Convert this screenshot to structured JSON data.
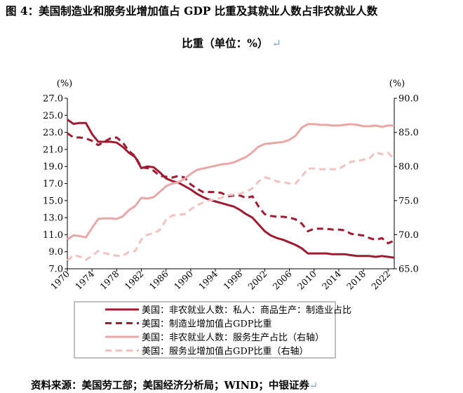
{
  "title_line1": "图 4：美国制造业和服务业增加值占 GDP 比重及其就业人数占非农就业人数",
  "title_line2": "比重（单位：%）",
  "source": "资料来源：美国劳工部；美国经济分析局；WIND；中银证券",
  "chart_data": {
    "type": "line",
    "left_axis": {
      "unit": "(%)",
      "ylim": [
        7,
        27
      ],
      "ticks": [
        "7.0",
        "9.0",
        "11.0",
        "13.0",
        "15.0",
        "17.0",
        "19.0",
        "21.0",
        "23.0",
        "25.0",
        "27.0"
      ]
    },
    "right_axis": {
      "unit": "(%)",
      "ylim": [
        65,
        90
      ],
      "ticks": [
        "65.0",
        "70.0",
        "75.0",
        "80.0",
        "85.0",
        "90.0"
      ]
    },
    "x_ticks": [
      "1970",
      "1974",
      "1978",
      "1982",
      "1986",
      "1990",
      "1994",
      "1998",
      "2002",
      "2006",
      "2010",
      "2014",
      "2018",
      "2022"
    ],
    "x_range": [
      1970,
      2023
    ],
    "series": [
      {
        "name": "美国：非农就业人数：私人：商品生产：制造业占比",
        "axis": "left",
        "color": "#9e1b32",
        "dash": "solid",
        "x": [
          1970,
          1971,
          1972,
          1973,
          1974,
          1975,
          1976,
          1977,
          1978,
          1979,
          1980,
          1981,
          1982,
          1983,
          1984,
          1985,
          1986,
          1987,
          1988,
          1989,
          1990,
          1991,
          1992,
          1993,
          1994,
          1995,
          1996,
          1997,
          1998,
          1999,
          2000,
          2001,
          2002,
          2003,
          2004,
          2005,
          2006,
          2007,
          2008,
          2009,
          2010,
          2011,
          2012,
          2013,
          2014,
          2015,
          2016,
          2017,
          2018,
          2019,
          2020,
          2021,
          2022,
          2023
        ],
        "values": [
          24.5,
          24.0,
          24.1,
          24.1,
          22.8,
          21.9,
          21.9,
          21.9,
          21.8,
          21.3,
          20.6,
          20.1,
          18.8,
          19.0,
          18.9,
          18.3,
          17.6,
          17.3,
          17.1,
          16.7,
          16.3,
          15.8,
          15.4,
          15.1,
          14.9,
          14.7,
          14.5,
          14.3,
          13.9,
          13.4,
          13.0,
          12.2,
          11.4,
          10.9,
          10.6,
          10.4,
          10.1,
          9.8,
          9.4,
          8.8,
          8.8,
          8.8,
          8.8,
          8.7,
          8.7,
          8.7,
          8.6,
          8.5,
          8.5,
          8.5,
          8.4,
          8.5,
          8.4,
          8.3
        ]
      },
      {
        "name": "美国：制造业增加值占GDP比重",
        "axis": "left",
        "color": "#9e1b32",
        "dash": "dashed",
        "x": [
          1970,
          1971,
          1972,
          1973,
          1974,
          1975,
          1976,
          1977,
          1978,
          1979,
          1980,
          1981,
          1982,
          1983,
          1984,
          1985,
          1986,
          1987,
          1988,
          1989,
          1990,
          1991,
          1992,
          1993,
          1994,
          1995,
          1996,
          1997,
          1998,
          1999,
          2000,
          2001,
          2002,
          2003,
          2004,
          2005,
          2006,
          2007,
          2008,
          2009,
          2010,
          2011,
          2012,
          2013,
          2014,
          2015,
          2016,
          2017,
          2018,
          2019,
          2020,
          2021,
          2022,
          2023
        ],
        "values": [
          22.9,
          22.4,
          22.4,
          22.3,
          22.0,
          21.5,
          21.9,
          22.3,
          22.4,
          21.8,
          20.8,
          20.2,
          18.9,
          18.8,
          18.5,
          17.9,
          17.8,
          17.7,
          17.9,
          17.7,
          16.9,
          16.4,
          16.0,
          16.0,
          16.0,
          15.9,
          15.5,
          15.6,
          15.6,
          15.3,
          15.5,
          14.3,
          13.4,
          13.2,
          13.1,
          13.1,
          13.0,
          12.8,
          12.3,
          11.4,
          11.7,
          11.7,
          11.7,
          11.6,
          11.6,
          11.5,
          11.1,
          11.0,
          10.9,
          10.6,
          10.4,
          10.6,
          10.0,
          10.3
        ]
      },
      {
        "name": "美国：非农就业人数：服务生产占比（右轴）",
        "axis": "right",
        "color": "#e8a8a8",
        "dash": "solid",
        "x": [
          1970,
          1971,
          1972,
          1973,
          1974,
          1975,
          1976,
          1977,
          1978,
          1979,
          1980,
          1981,
          1982,
          1983,
          1984,
          1985,
          1986,
          1987,
          1988,
          1989,
          1990,
          1991,
          1992,
          1993,
          1994,
          1995,
          1996,
          1997,
          1998,
          1999,
          2000,
          2001,
          2002,
          2003,
          2004,
          2005,
          2006,
          2007,
          2008,
          2009,
          2010,
          2011,
          2012,
          2013,
          2014,
          2015,
          2016,
          2017,
          2018,
          2019,
          2020,
          2021,
          2022,
          2023
        ],
        "values": [
          69.3,
          69.9,
          69.8,
          69.6,
          71.0,
          72.3,
          72.4,
          72.4,
          72.3,
          72.7,
          73.6,
          74.2,
          75.4,
          75.3,
          75.5,
          76.3,
          77.1,
          77.5,
          77.7,
          78.2,
          78.9,
          79.5,
          79.7,
          79.9,
          80.1,
          80.3,
          80.4,
          80.6,
          81.0,
          81.4,
          82.1,
          82.9,
          83.3,
          83.4,
          83.5,
          83.6,
          83.9,
          84.5,
          85.7,
          86.2,
          86.2,
          86.1,
          86.1,
          86.0,
          86.0,
          86.1,
          86.2,
          86.1,
          85.9,
          85.9,
          86.0,
          85.8,
          86.0,
          86.0
        ]
      },
      {
        "name": "美国：服务业增加值占GDP比重（右轴）",
        "axis": "right",
        "color": "#f0c2c2",
        "dash": "dashed",
        "x": [
          1970,
          1971,
          1972,
          1973,
          1974,
          1975,
          1976,
          1977,
          1978,
          1979,
          1980,
          1981,
          1982,
          1983,
          1984,
          1985,
          1986,
          1987,
          1988,
          1989,
          1990,
          1991,
          1992,
          1993,
          1994,
          1995,
          1996,
          1997,
          1998,
          1999,
          2000,
          2001,
          2002,
          2003,
          2004,
          2005,
          2006,
          2007,
          2008,
          2009,
          2010,
          2011,
          2012,
          2013,
          2014,
          2015,
          2016,
          2017,
          2018,
          2019,
          2020,
          2021,
          2022,
          2023
        ],
        "values": [
          66.2,
          67.0,
          66.8,
          66.3,
          66.9,
          67.6,
          67.3,
          67.1,
          66.9,
          66.9,
          67.5,
          67.6,
          69.3,
          70.0,
          70.2,
          70.7,
          72.2,
          72.8,
          72.9,
          73.0,
          73.7,
          74.3,
          74.7,
          75.0,
          75.2,
          75.4,
          75.8,
          75.9,
          76.0,
          76.3,
          76.8,
          77.8,
          78.4,
          78.2,
          77.8,
          77.7,
          77.5,
          77.5,
          78.5,
          79.7,
          79.7,
          79.6,
          79.6,
          79.6,
          79.6,
          80.2,
          80.7,
          80.8,
          81.0,
          81.2,
          82.1,
          81.8,
          82.0,
          81.1
        ]
      }
    ]
  }
}
